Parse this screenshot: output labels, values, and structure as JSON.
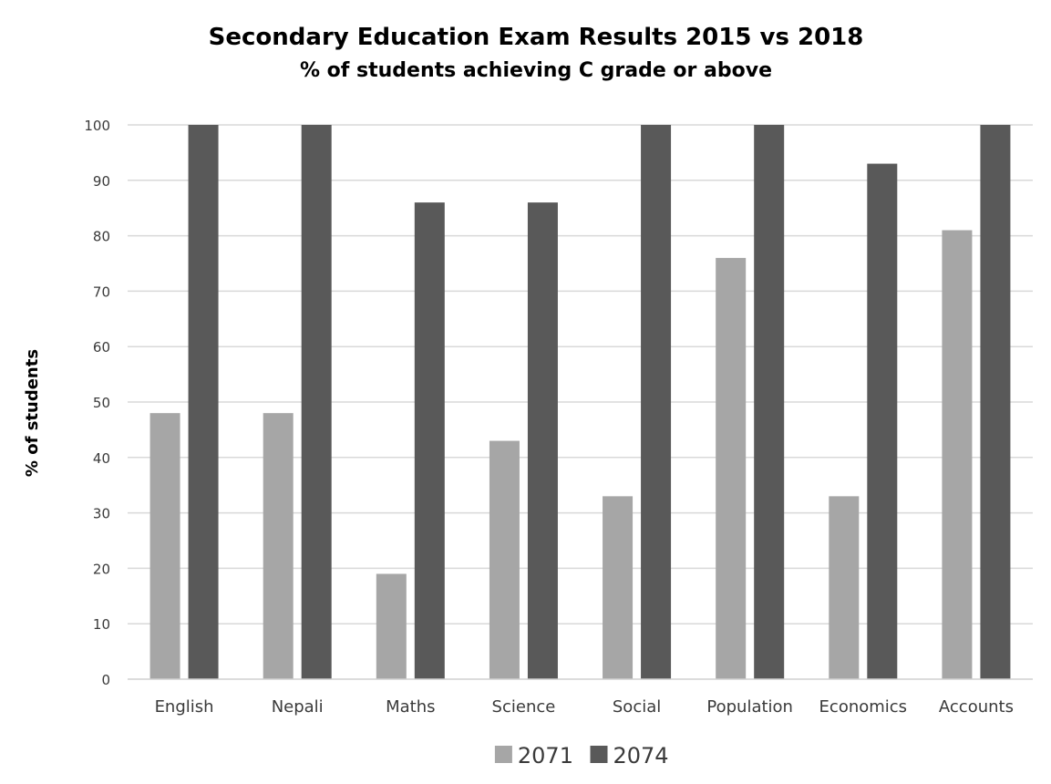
{
  "chart_data": {
    "type": "bar",
    "title": "Secondary Education Exam Results 2015 vs 2018",
    "subtitle": "% of students achieving C grade or above",
    "xlabel": "",
    "ylabel": "% of students",
    "ylim": [
      0,
      100
    ],
    "yticks": [
      0,
      10,
      20,
      30,
      40,
      50,
      60,
      70,
      80,
      90,
      100
    ],
    "grid": true,
    "legend_position": "bottom",
    "categories": [
      "English",
      "Nepali",
      "Maths",
      "Science",
      "Social",
      "Population",
      "Economics",
      "Accounts"
    ],
    "series": [
      {
        "name": "2071",
        "color": "#a6a6a6",
        "values": [
          48,
          48,
          19,
          43,
          33,
          76,
          33,
          81
        ]
      },
      {
        "name": "2074",
        "color": "#595959",
        "values": [
          100,
          100,
          86,
          86,
          100,
          100,
          93,
          100
        ]
      }
    ]
  }
}
